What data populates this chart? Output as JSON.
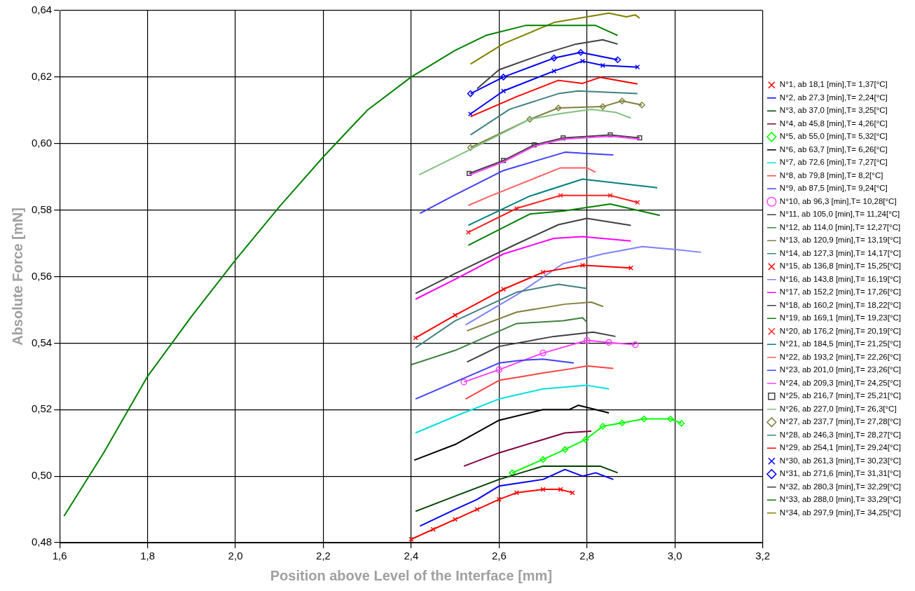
{
  "chart_data": {
    "type": "line",
    "xlabel": "Position above Level of the Interface [mm]",
    "ylabel": "Absolute Force [mN]",
    "xlim": [
      1.6,
      3.2
    ],
    "ylim": [
      0.48,
      0.64
    ],
    "xticks": [
      {
        "value": 1.6,
        "label": "1,6"
      },
      {
        "value": 1.8,
        "label": "1,8"
      },
      {
        "value": 2.0,
        "label": "2,0"
      },
      {
        "value": 2.2,
        "label": "2,2"
      },
      {
        "value": 2.4,
        "label": "2,4"
      },
      {
        "value": 2.6,
        "label": "2,6"
      },
      {
        "value": 2.8,
        "label": "2,8"
      },
      {
        "value": 3.0,
        "label": "3,0"
      },
      {
        "value": 3.2,
        "label": "3,2"
      }
    ],
    "yticks": [
      {
        "value": 0.48,
        "label": "0,48"
      },
      {
        "value": 0.5,
        "label": "0,50"
      },
      {
        "value": 0.52,
        "label": "0,52"
      },
      {
        "value": 0.54,
        "label": "0,54"
      },
      {
        "value": 0.56,
        "label": "0,56"
      },
      {
        "value": 0.58,
        "label": "0,58"
      },
      {
        "value": 0.6,
        "label": "0,60"
      },
      {
        "value": 0.62,
        "label": "0,62"
      },
      {
        "value": 0.64,
        "label": "0,64"
      }
    ],
    "grid": true,
    "legend": "right",
    "marker": "none",
    "line_style": "solid",
    "series": [
      {
        "name": "N°1, ab 18,1 [min],T= 1,37[°C]",
        "color": "#ff0000",
        "marker": "cross",
        "x": [
          2.4,
          2.45,
          2.5,
          2.55,
          2.6,
          2.64,
          2.7,
          2.74,
          2.767
        ],
        "values": [
          0.481,
          0.484,
          0.487,
          0.49,
          0.493,
          0.495,
          0.496,
          0.496,
          0.495
        ]
      },
      {
        "name": "N°2, ab 27,3 [min],T= 2,24[°C]",
        "color": "#0000ff",
        "x": [
          2.42,
          2.5,
          2.55,
          2.6,
          2.7,
          2.75,
          2.79,
          2.82,
          2.86
        ],
        "values": [
          0.485,
          0.49,
          0.493,
          0.497,
          0.499,
          0.502,
          0.5,
          0.501,
          0.499
        ]
      },
      {
        "name": "N°3, ab 37,0 [min],T= 3,25[°C]",
        "color": "#004000",
        "x": [
          2.41,
          2.5,
          2.6,
          2.65,
          2.7,
          2.83,
          2.87
        ],
        "values": [
          0.4894,
          0.494,
          0.499,
          0.501,
          0.503,
          0.503,
          0.501
        ]
      },
      {
        "name": "N°4, ab 45,8 [min],T= 4,26[°C]",
        "color": "#800040",
        "x": [
          2.52,
          2.6,
          2.7,
          2.75,
          2.81
        ],
        "values": [
          0.503,
          0.507,
          0.511,
          0.513,
          0.5135
        ]
      },
      {
        "name": "N°5, ab 55,0 [min],T= 5,32[°C]",
        "color": "#00ff00",
        "marker": "diamond",
        "x": [
          2.63,
          2.7,
          2.75,
          2.797,
          2.836,
          2.88,
          2.93,
          2.99,
          3.015
        ],
        "values": [
          0.501,
          0.505,
          0.508,
          0.511,
          0.515,
          0.516,
          0.5172,
          0.5172,
          0.5159
        ]
      },
      {
        "name": "N°6, ab 63,7 [min],T= 6,26[°C]",
        "color": "#000000",
        "x": [
          2.407,
          2.5,
          2.6,
          2.7,
          2.76,
          2.78,
          2.82,
          2.85
        ],
        "values": [
          0.5048,
          0.5095,
          0.5168,
          0.52,
          0.52,
          0.5213,
          0.52,
          0.519
        ]
      },
      {
        "name": "N°7, ab 72,6 [min],T= 7,27[°C]",
        "color": "#00e0e0",
        "x": [
          2.41,
          2.5,
          2.6,
          2.7,
          2.8,
          2.85
        ],
        "values": [
          0.513,
          0.518,
          0.5232,
          0.5262,
          0.5273,
          0.5262
        ]
      },
      {
        "name": "N°8, ab 79,8 [min],T= 8,2[°C]",
        "color": "#ff4040",
        "x": [
          2.524,
          2.6,
          2.7,
          2.76,
          2.8,
          2.86
        ],
        "values": [
          0.5232,
          0.5288,
          0.531,
          0.5322,
          0.5331,
          0.5324
        ]
      },
      {
        "name": "N°9, ab 87,5 [min],T= 9,24[°C]",
        "color": "#4040ff",
        "x": [
          2.41,
          2.5,
          2.6,
          2.65,
          2.7,
          2.77
        ],
        "values": [
          0.5232,
          0.5283,
          0.534,
          0.5348,
          0.5352,
          0.534
        ]
      },
      {
        "name": "N°10, ab 96,3 [min],T= 10,28[°C]",
        "color": "#ff40ff",
        "marker": "circle",
        "x": [
          2.52,
          2.6,
          2.7,
          2.8,
          2.85,
          2.91
        ],
        "values": [
          0.5283,
          0.532,
          0.537,
          0.5408,
          0.5402,
          0.5395
        ]
      },
      {
        "name": "N°11, ab 105,0 [min],T= 11,24[°C]",
        "color": "#404040",
        "x": [
          2.527,
          2.6,
          2.725,
          2.814,
          2.865
        ],
        "values": [
          0.5343,
          0.539,
          0.542,
          0.5433,
          0.542
        ]
      },
      {
        "name": "N°12, ab 114,0 [min],T= 12,27[°C]",
        "color": "#408040",
        "x": [
          2.4,
          2.5,
          2.64,
          2.746,
          2.79,
          2.8
        ],
        "values": [
          0.5335,
          0.5378,
          0.5459,
          0.5467,
          0.5476,
          0.5463
        ]
      },
      {
        "name": "N°13, ab 120,9 [min],T= 13,19[°C]",
        "color": "#808040",
        "x": [
          2.527,
          2.64,
          2.75,
          2.81,
          2.837
        ],
        "values": [
          0.5437,
          0.5493,
          0.5517,
          0.5523,
          0.551
        ]
      },
      {
        "name": "N°14, ab 127,3 [min],T= 14,17[°C]",
        "color": "#408080",
        "x": [
          2.41,
          2.5,
          2.64,
          2.735,
          2.8
        ],
        "values": [
          0.5386,
          0.5467,
          0.5553,
          0.5577,
          0.5564
        ]
      },
      {
        "name": "N°15, ab 136,8 [min],T= 15,25[°C]",
        "color": "#ff0000",
        "marker": "cross",
        "x": [
          2.41,
          2.5,
          2.61,
          2.7,
          2.79,
          2.9
        ],
        "values": [
          0.5416,
          0.5484,
          0.5562,
          0.5613,
          0.5634,
          0.5626
        ]
      },
      {
        "name": "N°16, ab 143,8 [min],T= 16,19[°C]",
        "color": "#8080ff",
        "x": [
          2.524,
          2.64,
          2.746,
          2.836,
          2.926,
          3.003,
          3.06
        ],
        "values": [
          0.5455,
          0.5545,
          0.5639,
          0.5668,
          0.569,
          0.5681,
          0.5673
        ]
      },
      {
        "name": "N°17, ab 152,2 [min],T= 17,26[°C]",
        "color": "#ff00ff",
        "x": [
          2.41,
          2.5,
          2.61,
          2.725,
          2.79,
          2.9
        ],
        "values": [
          0.5532,
          0.5592,
          0.5668,
          0.5715,
          0.572,
          0.5707
        ]
      },
      {
        "name": "N°18, ab 160,2 [min],T= 18,22[°C]",
        "color": "#404040",
        "x": [
          2.41,
          2.5,
          2.64,
          2.735,
          2.8,
          2.9
        ],
        "values": [
          0.5549,
          0.5609,
          0.5698,
          0.5756,
          0.5775,
          0.5754
        ]
      },
      {
        "name": "N°19, ab 169,1 [min],T= 19,23[°C]",
        "color": "#008000",
        "x": [
          2.53,
          2.67,
          2.746,
          2.853,
          2.966
        ],
        "values": [
          0.5694,
          0.5788,
          0.5797,
          0.5818,
          0.5784
        ]
      },
      {
        "name": "N°20, ab 176,2 [min],T= 20,19[°C]",
        "color": "#ff2020",
        "marker": "cross",
        "x": [
          2.53,
          2.64,
          2.74,
          2.853,
          2.915
        ],
        "values": [
          0.5733,
          0.5805,
          0.5844,
          0.5844,
          0.5823
        ]
      },
      {
        "name": "N°21, ab 184,5 [min],T= 21,25[°C]",
        "color": "#008080",
        "x": [
          2.53,
          2.67,
          2.79,
          2.96
        ],
        "values": [
          0.5754,
          0.5842,
          0.5893,
          0.5867
        ]
      },
      {
        "name": "N°22, ab 193,2 [min],T= 22,26[°C]",
        "color": "#ff6060",
        "x": [
          2.53,
          2.58,
          2.74,
          2.8,
          2.82
        ],
        "values": [
          0.5814,
          0.5842,
          0.5927,
          0.5927,
          0.5914
        ]
      },
      {
        "name": "N°23, ab 201,0 [min],T= 23,26[°C]",
        "color": "#4040ff",
        "x": [
          2.42,
          2.5,
          2.61,
          2.75,
          2.8,
          2.86
        ],
        "values": [
          0.579,
          0.5846,
          0.5919,
          0.5974,
          0.597,
          0.5966
        ]
      },
      {
        "name": "N°24, ab 209,3 [min],T= 24,25[°C]",
        "color": "#ff40ff",
        "x": [
          2.532,
          2.61,
          2.68,
          2.746,
          2.853,
          2.92
        ],
        "values": [
          0.5905,
          0.5945,
          0.5992,
          0.6013,
          0.6022,
          0.6013
        ]
      },
      {
        "name": "N°25, ab 216,7 [min],T= 25,21[°C]",
        "color": "#404040",
        "marker": "square",
        "x": [
          2.532,
          2.61,
          2.68,
          2.746,
          2.853,
          2.92
        ],
        "values": [
          0.591,
          0.5949,
          0.5996,
          0.6017,
          0.6026,
          0.6017
        ]
      },
      {
        "name": "N°26, ab 227,0 [min],T= 26,3[°C]",
        "color": "#80c080",
        "x": [
          2.418,
          2.53,
          2.67,
          2.74,
          2.81,
          2.865,
          2.9
        ],
        "values": [
          0.5906,
          0.5979,
          0.6073,
          0.609,
          0.6103,
          0.6094,
          0.6077
        ]
      },
      {
        "name": "N°27, ab 237,7 [min],T= 27,28[°C]",
        "color": "#808040",
        "marker": "diamond",
        "x": [
          2.535,
          2.67,
          2.735,
          2.836,
          2.88,
          2.925
        ],
        "values": [
          0.5988,
          0.6073,
          0.6107,
          0.6111,
          0.6128,
          0.6116
        ]
      },
      {
        "name": "N°28, ab 246,3 [min],T= 28,27[°C]",
        "color": "#408080",
        "x": [
          2.535,
          2.624,
          2.735,
          2.78,
          2.915
        ],
        "values": [
          0.6026,
          0.6103,
          0.615,
          0.6158,
          0.615
        ]
      },
      {
        "name": "N°29, ab 254,1 [min],T= 29,24[°C]",
        "color": "#ff0000",
        "x": [
          2.535,
          2.64,
          2.735,
          2.79,
          2.83,
          2.915
        ],
        "values": [
          0.6081,
          0.6141,
          0.619,
          0.6181,
          0.6199,
          0.6179
        ]
      },
      {
        "name": "N°30, ab 261,3 [min],T= 30,23[°C]",
        "color": "#0000ff",
        "marker": "cross",
        "x": [
          2.535,
          2.61,
          2.725,
          2.79,
          2.836,
          2.915
        ],
        "values": [
          0.6089,
          0.6158,
          0.6218,
          0.6248,
          0.6235,
          0.623
        ]
      },
      {
        "name": "N°31, ab 271,6 [min],T= 31,31[°C]",
        "color": "#0000ff",
        "marker": "diamond",
        "x": [
          2.535,
          2.61,
          2.725,
          2.786,
          2.87
        ],
        "values": [
          0.615,
          0.62,
          0.6257,
          0.6274,
          0.6252
        ]
      },
      {
        "name": "N°32, ab 280,3 [min],T= 32,29[°C]",
        "color": "#404040",
        "x": [
          2.55,
          2.6,
          2.7,
          2.775,
          2.836,
          2.87
        ],
        "values": [
          0.6165,
          0.6222,
          0.6269,
          0.6299,
          0.6312,
          0.6299
        ]
      },
      {
        "name": "N°33, ab 288,0 [min],T= 33,29[°C]",
        "color": "#008000",
        "x": [
          1.61,
          1.7,
          1.8,
          1.9,
          2.0,
          2.1,
          2.2,
          2.3,
          2.4,
          2.5,
          2.57,
          2.66,
          2.82,
          2.87
        ],
        "values": [
          0.488,
          0.507,
          0.53,
          0.548,
          0.565,
          0.581,
          0.596,
          0.61,
          0.62,
          0.628,
          0.6325,
          0.6355,
          0.6355,
          0.6325
        ]
      },
      {
        "name": "N°34, ab 297,9 [min],T= 34,25[°C]",
        "color": "#808000",
        "x": [
          2.535,
          2.61,
          2.725,
          2.85,
          2.89,
          2.91,
          2.92
        ],
        "values": [
          0.6239,
          0.63,
          0.6364,
          0.6392,
          0.6381,
          0.6387,
          0.6377
        ]
      }
    ]
  }
}
